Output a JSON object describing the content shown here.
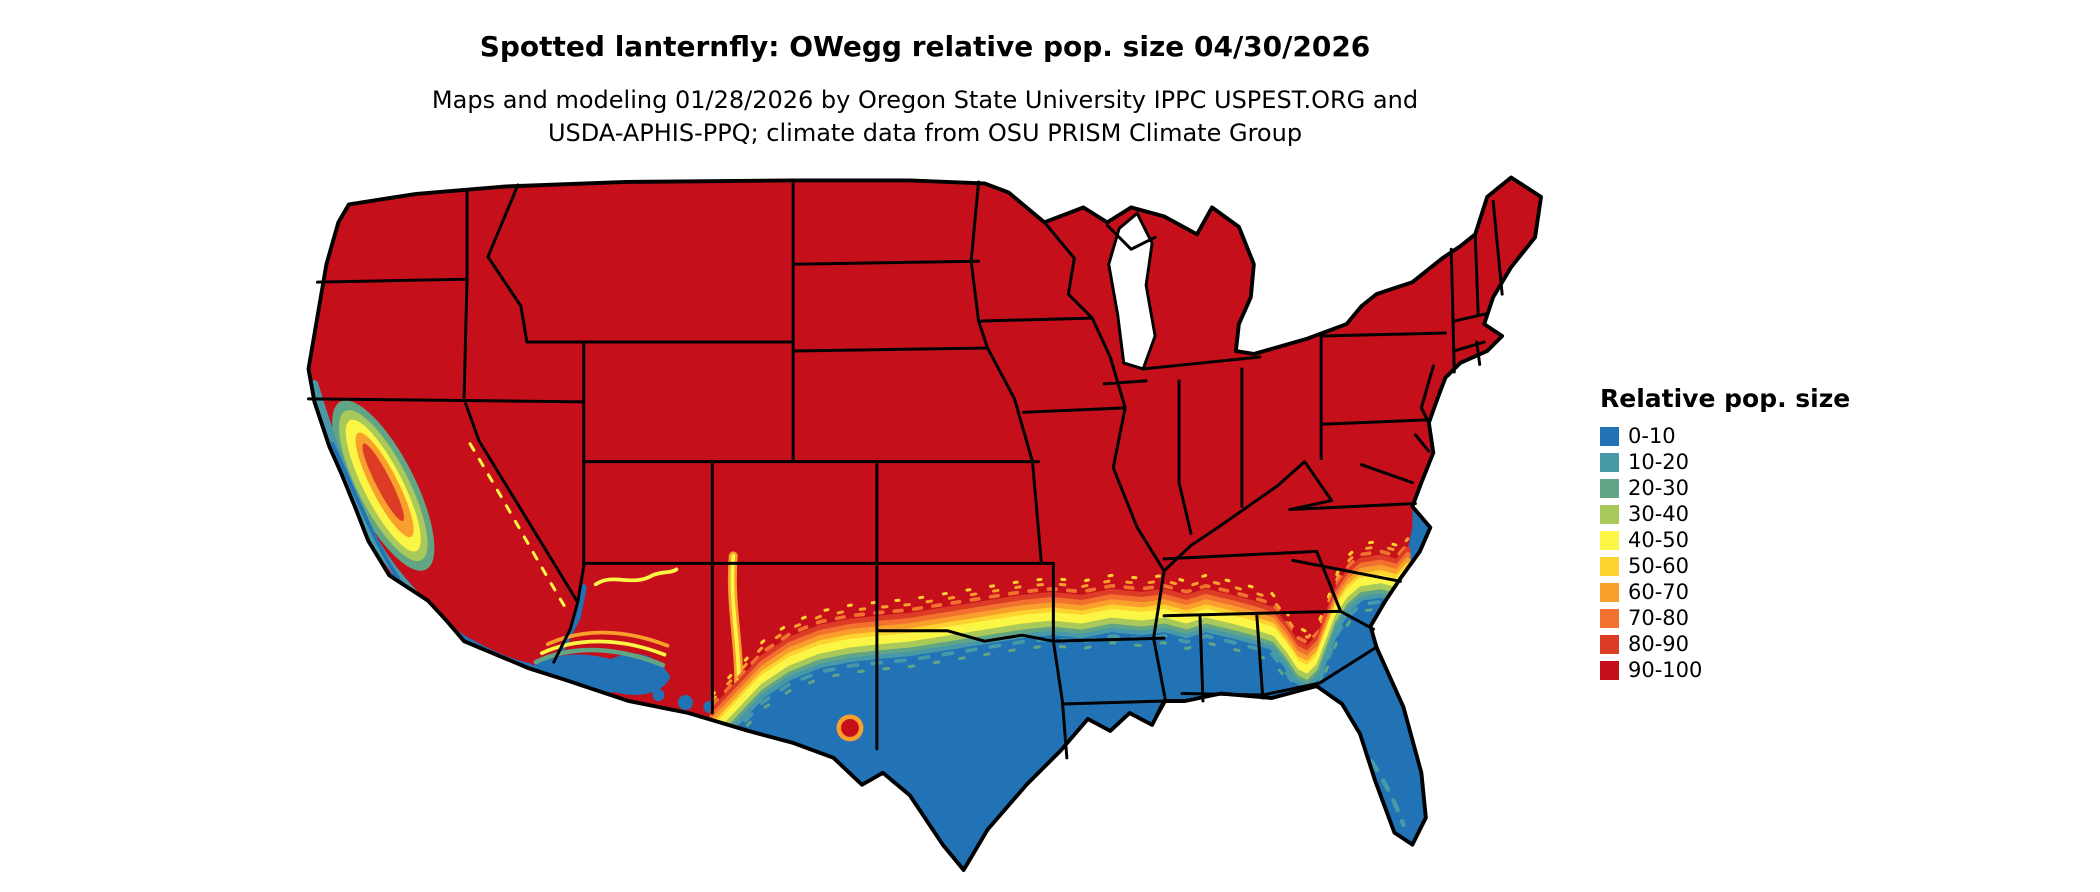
{
  "header": {
    "title": "Spotted lanternfly: OWegg relative pop. size 04/30/2026",
    "subtitle_line1": "Maps and modeling 01/28/2026 by Oregon State University IPPC USPEST.ORG and",
    "subtitle_line2": "USDA-APHIS-PPQ; climate data from OSU PRISM Climate Group"
  },
  "legend": {
    "title": "Relative pop. size",
    "items": [
      {
        "label": "0-10",
        "color": "#2173b6"
      },
      {
        "label": "10-20",
        "color": "#4899a8"
      },
      {
        "label": "20-30",
        "color": "#62a585"
      },
      {
        "label": "30-40",
        "color": "#a9c95a"
      },
      {
        "label": "40-50",
        "color": "#fbf646"
      },
      {
        "label": "50-60",
        "color": "#fdd32f"
      },
      {
        "label": "60-70",
        "color": "#f9a02c"
      },
      {
        "label": "70-80",
        "color": "#f2712f"
      },
      {
        "label": "80-90",
        "color": "#dc3b26"
      },
      {
        "label": "90-100",
        "color": "#c5101c"
      }
    ]
  },
  "map": {
    "region": "Contiguous United States",
    "type": "choropleth raster map",
    "border_color": "#000000",
    "background_color": "#ffffff"
  }
}
